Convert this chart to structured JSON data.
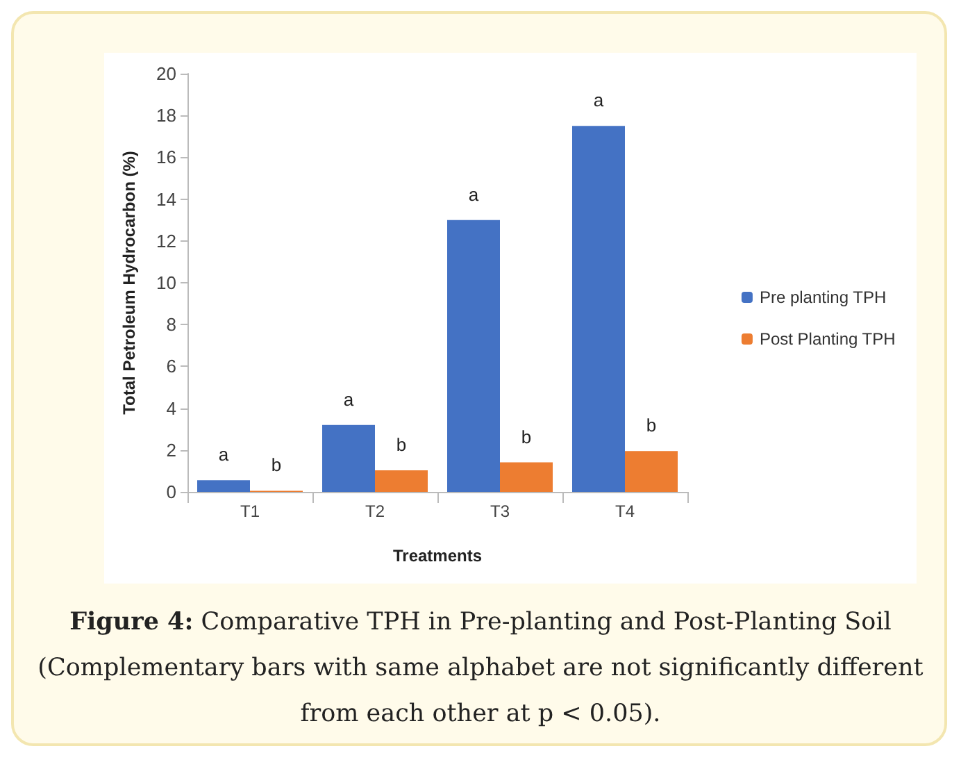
{
  "chart_data": {
    "type": "bar",
    "xlabel": "Treatments",
    "ylabel": "Total Petroleum Hydrocarbon (%)",
    "categories": [
      "T1",
      "T2",
      "T3",
      "T4"
    ],
    "series": [
      {
        "name": "Pre planting TPH",
        "color": "#4472c4",
        "values": [
          0.56,
          3.2,
          13.0,
          17.5
        ],
        "value_labels": [
          "a",
          "a",
          "a",
          "a"
        ]
      },
      {
        "name": "Post Planting TPH",
        "color": "#ed7d31",
        "values": [
          0.05,
          1.03,
          1.41,
          1.95
        ],
        "value_labels": [
          "b",
          "b",
          "b",
          "b"
        ]
      }
    ],
    "ylim": [
      0,
      20
    ],
    "yticks": [
      0,
      2,
      4,
      6,
      8,
      10,
      12,
      14,
      16,
      18,
      20
    ],
    "grid": false,
    "legend": "right",
    "annotations": [
      "Figure 4: Comparative TPH in Pre-planting and Post-Planting Soil (Complementary bars with same alphabet are not significantly different from each other at p < 0.05)."
    ]
  }
}
